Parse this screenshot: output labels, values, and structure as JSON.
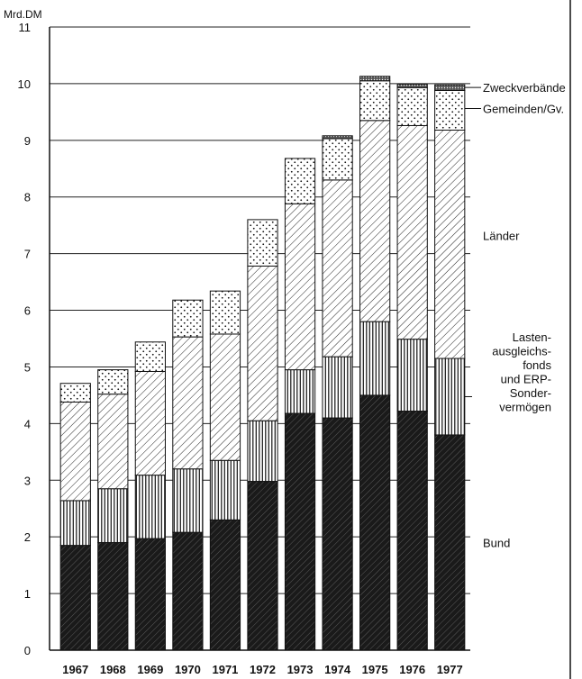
{
  "chart_data": {
    "type": "bar",
    "stacked": true,
    "unit_label": "Mrd.DM",
    "ylim": [
      0,
      11
    ],
    "yticks": [
      "0",
      "1",
      "2",
      "3",
      "4",
      "5",
      "6",
      "7",
      "8",
      "9",
      "10",
      "11"
    ],
    "grid": true,
    "legend_placement": "right",
    "categories": [
      "1967",
      "1968",
      "1969",
      "1970",
      "1971",
      "1972",
      "1973",
      "1974",
      "1975",
      "1976",
      "1977"
    ],
    "series": [
      {
        "name": "Bund",
        "values": [
          1.85,
          1.9,
          1.97,
          2.08,
          2.3,
          2.98,
          4.18,
          4.1,
          4.5,
          4.22,
          3.8
        ]
      },
      {
        "name": "Lasten-ausgleichs-fonds und ERP-Sonder-vermögen",
        "values": [
          0.79,
          0.95,
          1.12,
          1.12,
          1.05,
          1.07,
          0.77,
          1.08,
          1.3,
          1.27,
          1.35
        ]
      },
      {
        "name": "Länder",
        "values": [
          1.74,
          1.67,
          1.83,
          2.33,
          2.23,
          2.73,
          2.93,
          3.12,
          3.55,
          3.77,
          4.03
        ]
      },
      {
        "name": "Gemeinden/Gv.",
        "values": [
          0.33,
          0.43,
          0.52,
          0.65,
          0.76,
          0.82,
          0.8,
          0.73,
          0.7,
          0.67,
          0.7
        ]
      },
      {
        "name": "Zweckverbände",
        "values": [
          0.0,
          0.0,
          0.0,
          0.0,
          0.0,
          0.0,
          0.0,
          0.05,
          0.08,
          0.06,
          0.1
        ]
      }
    ],
    "legend_lines": [
      [
        "Zweckverbände"
      ],
      [
        "Gemeinden/Gv."
      ],
      [
        "Länder"
      ],
      [
        "Lasten-",
        "ausgleichs-",
        "fonds",
        "und ERP-",
        "Sonder-",
        "vermögen"
      ],
      [
        "Bund"
      ]
    ],
    "colors": {
      "bar": "#1a1a1a",
      "grid": "#222222",
      "background": "#ffffff"
    }
  }
}
